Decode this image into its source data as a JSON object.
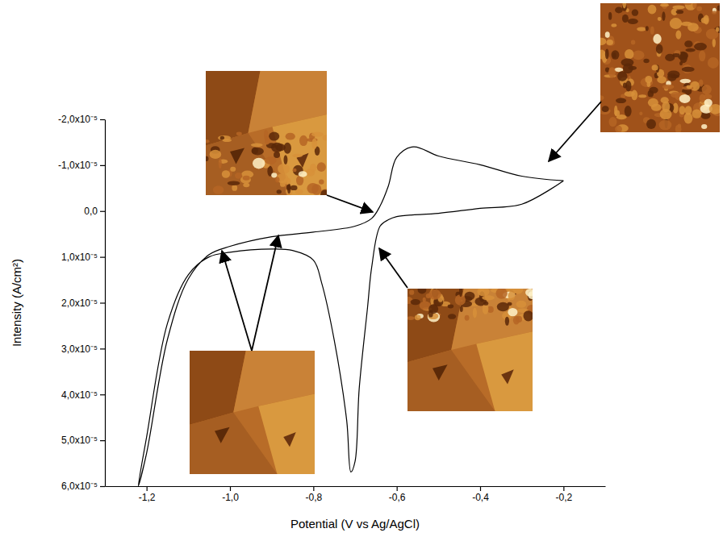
{
  "chart_data": {
    "type": "line",
    "x_label": "Potential (V vs Ag/AgCl)",
    "y_label": "Intensity (A/cm²)",
    "xlim": [
      -1.3,
      -0.1
    ],
    "ylim": [
      -2e-05,
      6e-05
    ],
    "xticks": [
      {
        "value": -1.2,
        "label": "-1,2"
      },
      {
        "value": -1.0,
        "label": "-1,0"
      },
      {
        "value": -0.8,
        "label": "-0,8"
      },
      {
        "value": -0.6,
        "label": "-0,6"
      },
      {
        "value": -0.4,
        "label": "-0,4"
      },
      {
        "value": -0.2,
        "label": "-0,2"
      }
    ],
    "yticks": [
      {
        "value": -2e-05,
        "label": "-2,0x10⁻⁵"
      },
      {
        "value": -1e-05,
        "label": "-1,0x10⁻⁵"
      },
      {
        "value": 0,
        "label": "0,0"
      },
      {
        "value": 1e-05,
        "label": "1,0x10⁻⁵"
      },
      {
        "value": 2e-05,
        "label": "2,0x10⁻⁵"
      },
      {
        "value": 3e-05,
        "label": "3,0x10⁻⁵"
      },
      {
        "value": 4e-05,
        "label": "4,0x10⁻⁵"
      },
      {
        "value": 5e-05,
        "label": "5,0x10⁻⁵"
      },
      {
        "value": 6e-05,
        "label": "6,0x10⁻⁵"
      }
    ],
    "x": [
      -0.2,
      -0.3,
      -0.4,
      -0.5,
      -0.56,
      -0.6,
      -0.62,
      -0.64,
      -0.66,
      -0.7,
      -0.8,
      -0.9,
      -1.0,
      -1.05,
      -1.1,
      -1.15,
      -1.2,
      -1.22,
      -1.2,
      -1.15,
      -1.1,
      -1.05,
      -1.0,
      -0.9,
      -0.85,
      -0.8,
      -0.78,
      -0.75,
      -0.72,
      -0.71,
      -0.7,
      -0.69,
      -0.67,
      -0.66,
      -0.64,
      -0.62,
      -0.6,
      -0.5,
      -0.4,
      -0.3,
      -0.2
    ],
    "series": [
      {
        "color": "#000000",
        "values": [
          -6.6e-06,
          -7.6e-06,
          -1.01e-05,
          -1.2e-05,
          -1.4e-05,
          -1.17e-05,
          -5.5e-06,
          -1.1e-06,
          1.6e-06,
          3.3e-06,
          4.6e-06,
          5.6e-06,
          7.7e-06,
          9.5e-06,
          1.48e-05,
          2.8e-05,
          5.28e-05,
          6e-05,
          4.93e-05,
          2.45e-05,
          1.39e-05,
          1e-05,
          9e-06,
          8.3e-06,
          8.6e-06,
          1.07e-05,
          1.57e-05,
          2.81e-05,
          4.57e-05,
          5.69e-05,
          5.46e-05,
          3.87e-05,
          2.1e-05,
          1.22e-05,
          3.3e-06,
          1.9e-06,
          1.2e-06,
          5e-07,
          -6e-07,
          -1.5e-06,
          -6.6e-06
        ]
      }
    ]
  }
}
